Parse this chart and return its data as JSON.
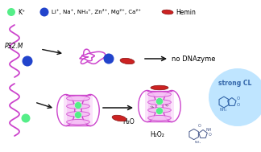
{
  "bg_color": "#ffffff",
  "ps2m_label": "PS2.M",
  "strong_cl_label": "strong CL",
  "no_dnazyme_label": "no DNAzyme",
  "h2o2_label": "H₂O₂",
  "h2o_label": "H₂O",
  "legend_k": "K⁺",
  "legend_others": "Li⁺, Na⁺, NH₄⁺, Zn²⁺, Mg²⁺, Ca²⁺",
  "legend_hemin": "Hemin",
  "color_dna": "#cc44cc",
  "color_dna_fill": "#f5c0f5",
  "color_k": "#55ee88",
  "color_others": "#2244cc",
  "color_hemin": "#cc2222",
  "color_hemin_edge": "#881111",
  "color_cl_glow": "#aaddff",
  "color_arrow": "#111111",
  "luminol_color": "#445588",
  "luminol_color2": "#3366aa"
}
